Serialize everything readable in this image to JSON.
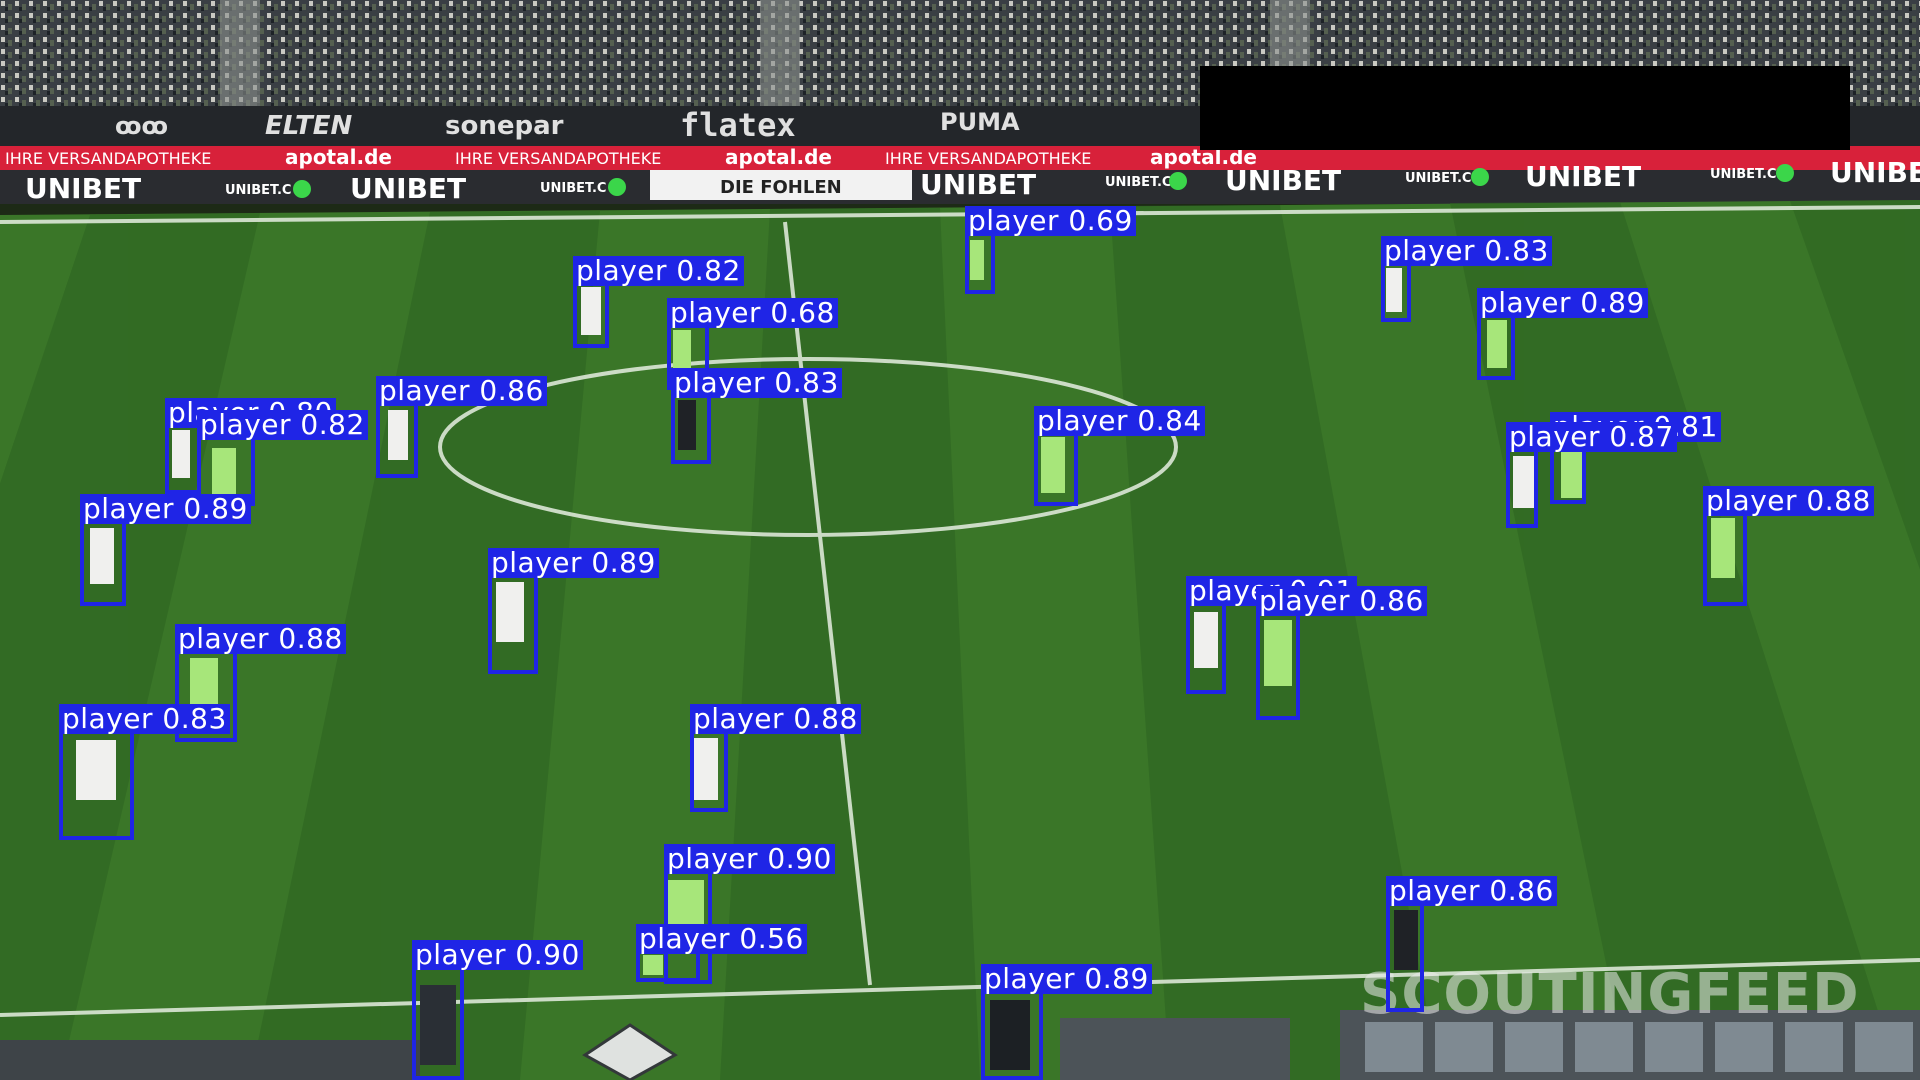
{
  "image": {
    "watermark_text": "SCOUTINGFEED",
    "ad_board_texts": [
      "IHRE VERSANDAPOTHEKE",
      "apotal.de",
      "UNIBET",
      "DIE FOHLEN",
      "flatex",
      "ELTEN",
      "sonepar",
      "PUMA"
    ],
    "colors": {
      "box": "#1f25e6",
      "pitch_light": "#3d7a2a",
      "pitch_dark": "#2f6a22",
      "line": "#e8efe4"
    }
  },
  "detections": [
    {
      "label": "player 0.69"
    },
    {
      "label": "player 0.83"
    },
    {
      "label": "player 0.82"
    },
    {
      "label": "player 0.68"
    },
    {
      "label": "player 0.89"
    },
    {
      "label": "player 0.83"
    },
    {
      "label": "player 0.86"
    },
    {
      "label": "player 0.80"
    },
    {
      "label": "player 0.82"
    },
    {
      "label": "player 0.81"
    },
    {
      "label": "player 0.84"
    },
    {
      "label": "player 0.87"
    },
    {
      "label": "player 0.89"
    },
    {
      "label": "player 0.88"
    },
    {
      "label": "player 0.89"
    },
    {
      "label": "player 0.91"
    },
    {
      "label": "player 0.86"
    },
    {
      "label": "player 0.88"
    },
    {
      "label": "player 0.83"
    },
    {
      "label": "player 0.88"
    },
    {
      "label": "player 0.90"
    },
    {
      "label": "player 0.86"
    },
    {
      "label": "player 0.56"
    },
    {
      "label": "player 0.90"
    },
    {
      "label": "player 0.89"
    }
  ]
}
